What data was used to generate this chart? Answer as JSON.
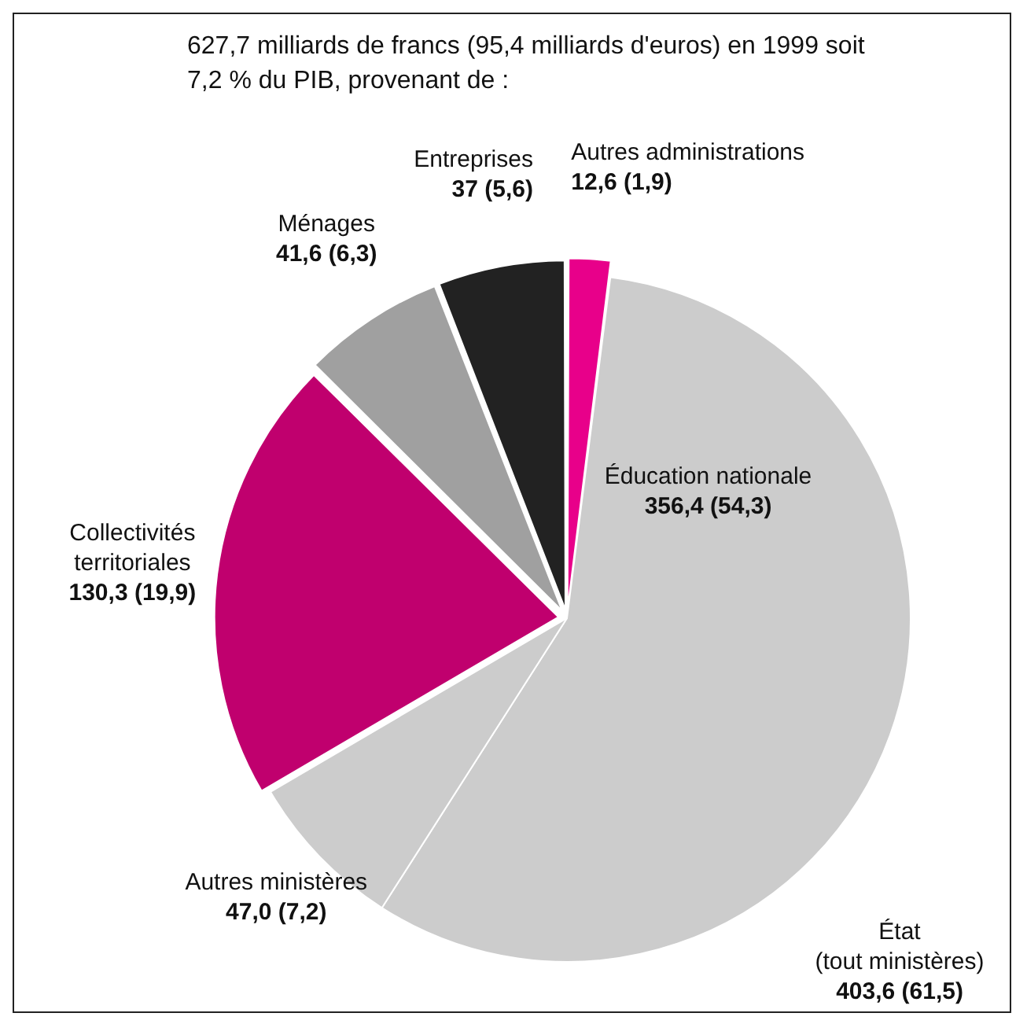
{
  "chart_data": {
    "type": "pie",
    "title": "627,7 milliards de francs (95,4 milliards d'euros) en 1999 soit 7,2 % du PIB, provenant de :",
    "categories": [
      "Autres administrations",
      "Éducation nationale",
      "Autres ministères",
      "Collectivités territoriales",
      "Ménages",
      "Entreprises"
    ],
    "values": [
      12.6,
      356.4,
      47.0,
      130.3,
      41.6,
      37
    ],
    "colors": [
      "#e8008a",
      "#cccccc",
      "#cccccc",
      "#c0006e",
      "#a0a0a0",
      "#222222"
    ],
    "value_labels": [
      "12,6 (1,9)",
      "356,4 (54,3)",
      "47,0 (7,2)",
      "130,3 (19,9)",
      "41,6 (6,3)",
      "37 (5,6)"
    ],
    "annotations": [
      "État\n(tout ministères)\n403,6 (61,5)"
    ]
  }
}
